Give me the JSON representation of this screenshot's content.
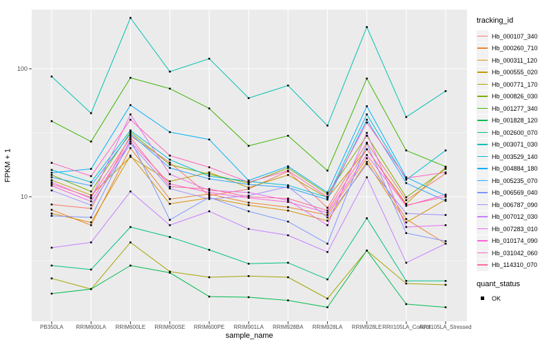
{
  "chart_data": {
    "type": "line",
    "title": "",
    "xlabel": "sample_name",
    "ylabel": "FPKM + 1",
    "y_scale": "log10",
    "y_ticks": [
      100,
      10
    ],
    "y_minor_ticks": [
      31.62,
      3.162
    ],
    "ylim_approx": [
      1.1,
      290
    ],
    "grid": "on",
    "panel_bg": "#EBEBEB",
    "grid_color": "#FFFFFF",
    "tick_color": "#333333",
    "point_marker": {
      "shape": "square",
      "color": "#000000"
    },
    "legend": {
      "title": "tracking_id",
      "position": "right"
    },
    "quant_status": {
      "title": "quant_status",
      "items": [
        {
          "label": "OK",
          "marker": "black-square"
        }
      ]
    },
    "categories": [
      "PB350LA",
      "RRIM600LA",
      "RRIM600LE",
      "RRIM600SE",
      "RRIM600PE",
      "RRIM901LA",
      "RRIM928BA",
      "RRIM928LA",
      "RRIM928LE",
      "RRII105LA_Control",
      "RRII105LA_Stressed"
    ],
    "series": [
      {
        "name": "Hb_000107_340",
        "color": "#F8766D",
        "values": [
          8.7,
          8.1,
          30,
          18.5,
          10.2,
          11.5,
          15.8,
          8.2,
          26.5,
          9.4,
          15.2
        ]
      },
      {
        "name": "Hb_000260_710",
        "color": "#EA8331",
        "values": [
          7.9,
          6.0,
          24,
          9.6,
          10.5,
          9.0,
          8.3,
          7.2,
          20,
          6.7,
          4.3
        ]
      },
      {
        "name": "Hb_000311_120",
        "color": "#D89000",
        "values": [
          7.4,
          6.3,
          21,
          8.8,
          9.8,
          8.6,
          7.8,
          6.5,
          18.7,
          6.3,
          9.5
        ]
      },
      {
        "name": "Hb_000555_020",
        "color": "#C09B00",
        "values": [
          13.5,
          10.3,
          20.5,
          13.2,
          15.5,
          11.8,
          14.8,
          9.8,
          23.5,
          8.8,
          17.0
        ]
      },
      {
        "name": "Hb_000771_170",
        "color": "#A3A500",
        "values": [
          2.3,
          1.9,
          4.4,
          2.6,
          2.35,
          2.4,
          2.35,
          1.6,
          3.8,
          2.1,
          2.05
        ]
      },
      {
        "name": "Hb_000826_030",
        "color": "#7CAE00",
        "values": [
          14.8,
          11.0,
          32,
          17.8,
          15.0,
          12.8,
          16.8,
          10.5,
          30,
          9.9,
          16.5
        ]
      },
      {
        "name": "Hb_001277_340",
        "color": "#39B600",
        "values": [
          39,
          27,
          85,
          70,
          49,
          25,
          30,
          16,
          84,
          23,
          17.2
        ]
      },
      {
        "name": "Hb_001828_120",
        "color": "#00BB4E",
        "values": [
          1.75,
          1.9,
          2.9,
          2.55,
          1.66,
          1.64,
          1.55,
          1.37,
          3.8,
          1.45,
          1.37
        ]
      },
      {
        "name": "Hb_002600_070",
        "color": "#00C087",
        "values": [
          2.9,
          2.7,
          5.8,
          4.85,
          3.85,
          3.0,
          3.05,
          2.26,
          6.8,
          2.2,
          2.2
        ]
      },
      {
        "name": "Hb_003071_030",
        "color": "#00C0B4",
        "values": [
          87,
          45,
          250,
          95,
          120,
          59,
          74,
          36,
          212,
          42,
          67
        ]
      },
      {
        "name": "Hb_003529_140",
        "color": "#00BCD8",
        "values": [
          16.2,
          13.0,
          33,
          19.5,
          14.5,
          13.2,
          12.3,
          9.9,
          44,
          13.6,
          23
        ]
      },
      {
        "name": "Hb_004884_180",
        "color": "#00B0F6",
        "values": [
          15.4,
          16.5,
          52,
          32,
          28,
          13.4,
          17.3,
          10.8,
          51,
          14.2,
          10.2
        ]
      },
      {
        "name": "Hb_005235_070",
        "color": "#2FA4FF",
        "values": [
          14.2,
          12.2,
          31,
          16.8,
          13.8,
          12.5,
          11.8,
          9.5,
          40,
          12.8,
          9.3
        ]
      },
      {
        "name": "Hb_006569_040",
        "color": "#7E96FF",
        "values": [
          7.1,
          6.9,
          28,
          6.6,
          9.9,
          7.7,
          6.4,
          4.3,
          26,
          5.2,
          4.5
        ]
      },
      {
        "name": "Hb_006787_090",
        "color": "#9C8DFF",
        "values": [
          11.2,
          8.6,
          26,
          11.6,
          9.6,
          10.2,
          12.0,
          6.9,
          18.0,
          7.4,
          7.2
        ]
      },
      {
        "name": "Hb_007012_030",
        "color": "#C77CFF",
        "values": [
          4.0,
          4.4,
          11.0,
          6.0,
          7.7,
          5.6,
          5.0,
          3.7,
          14.2,
          3.05,
          4.3
        ]
      },
      {
        "name": "Hb_007283_010",
        "color": "#E76BF3",
        "values": [
          13.0,
          9.7,
          44,
          15.0,
          11.2,
          10.8,
          9.4,
          6.0,
          31.6,
          5.8,
          6.0
        ]
      },
      {
        "name": "Hb_010174_090",
        "color": "#FA62DB",
        "values": [
          12.2,
          9.2,
          27,
          12.6,
          10.8,
          9.8,
          9.1,
          7.5,
          21.2,
          8.5,
          10.4
        ]
      },
      {
        "name": "Hb_031042_060",
        "color": "#FF62BC",
        "values": [
          18.4,
          14.5,
          40,
          21.0,
          17.0,
          13.0,
          16.0,
          10.0,
          38,
          14.0,
          15.5
        ]
      },
      {
        "name": "Hb_114310_070",
        "color": "#FF6A98",
        "values": [
          12.6,
          9.9,
          29,
          12.0,
          11.5,
          10.0,
          9.7,
          7.8,
          23.5,
          8.6,
          10.0
        ]
      }
    ]
  }
}
